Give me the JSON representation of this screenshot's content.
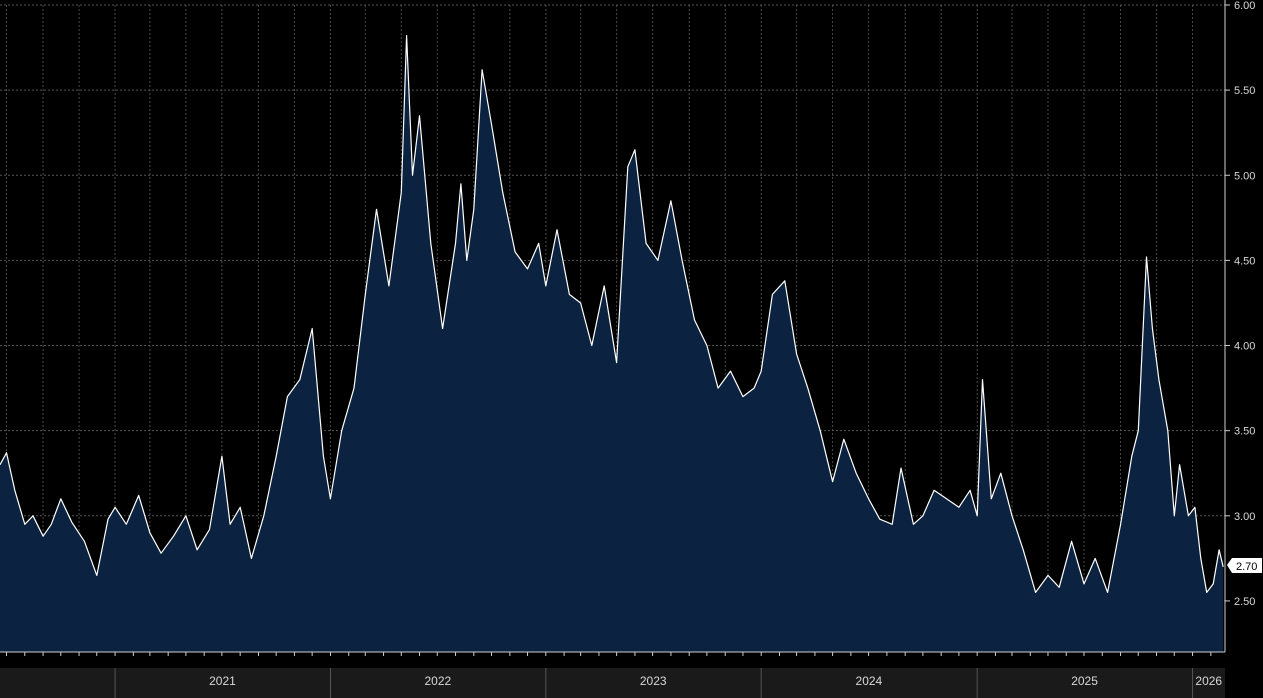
{
  "chart_data": {
    "type": "area",
    "title": "",
    "xlabel": "",
    "ylabel": "",
    "grid": true,
    "colors": {
      "background": "#000000",
      "fill": "#0b2340",
      "line": "#ffffff",
      "grid": "#555555",
      "axis_text": "#d8d8d8"
    },
    "ylim": [
      2.2,
      6.0
    ],
    "xlim": [
      "2020-06-20",
      "2026-02-25"
    ],
    "y_ticks": [
      "2.50",
      "3.00",
      "3.50",
      "4.00",
      "4.50",
      "5.00",
      "5.50",
      "6.00"
    ],
    "x_ticks": [
      "2021",
      "2022",
      "2023",
      "2024",
      "2025",
      "2026"
    ],
    "last_value_label": "2.70",
    "series": [
      {
        "values": [
          [
            "2020-06-20",
            3.3
          ],
          [
            "2020-07-01",
            3.37
          ],
          [
            "2020-07-15",
            3.15
          ],
          [
            "2020-08-01",
            2.95
          ],
          [
            "2020-08-15",
            3.0
          ],
          [
            "2020-09-01",
            2.88
          ],
          [
            "2020-09-15",
            2.95
          ],
          [
            "2020-10-01",
            3.1
          ],
          [
            "2020-10-20",
            2.96
          ],
          [
            "2020-11-10",
            2.85
          ],
          [
            "2020-12-01",
            2.65
          ],
          [
            "2020-12-20",
            2.98
          ],
          [
            "2021-01-01",
            3.05
          ],
          [
            "2021-01-20",
            2.95
          ],
          [
            "2021-02-10",
            3.12
          ],
          [
            "2021-03-01",
            2.9
          ],
          [
            "2021-03-20",
            2.78
          ],
          [
            "2021-04-10",
            2.88
          ],
          [
            "2021-05-01",
            3.0
          ],
          [
            "2021-05-20",
            2.8
          ],
          [
            "2021-06-10",
            2.92
          ],
          [
            "2021-07-01",
            3.35
          ],
          [
            "2021-07-15",
            2.95
          ],
          [
            "2021-08-01",
            3.05
          ],
          [
            "2021-08-20",
            2.75
          ],
          [
            "2021-09-10",
            3.0
          ],
          [
            "2021-10-01",
            3.35
          ],
          [
            "2021-10-20",
            3.7
          ],
          [
            "2021-11-10",
            3.8
          ],
          [
            "2021-12-01",
            4.1
          ],
          [
            "2021-12-20",
            3.35
          ],
          [
            "2022-01-01",
            3.1
          ],
          [
            "2022-01-20",
            3.5
          ],
          [
            "2022-02-10",
            3.75
          ],
          [
            "2022-03-01",
            4.3
          ],
          [
            "2022-03-20",
            4.8
          ],
          [
            "2022-04-10",
            4.35
          ],
          [
            "2022-05-01",
            4.9
          ],
          [
            "2022-05-10",
            5.82
          ],
          [
            "2022-05-20",
            5.0
          ],
          [
            "2022-06-01",
            5.35
          ],
          [
            "2022-06-20",
            4.6
          ],
          [
            "2022-07-10",
            4.1
          ],
          [
            "2022-08-01",
            4.6
          ],
          [
            "2022-08-10",
            4.95
          ],
          [
            "2022-08-20",
            4.5
          ],
          [
            "2022-09-01",
            4.8
          ],
          [
            "2022-09-15",
            5.62
          ],
          [
            "2022-10-01",
            5.3
          ],
          [
            "2022-10-20",
            4.9
          ],
          [
            "2022-11-10",
            4.55
          ],
          [
            "2022-12-01",
            4.45
          ],
          [
            "2022-12-20",
            4.6
          ],
          [
            "2023-01-01",
            4.35
          ],
          [
            "2023-01-20",
            4.68
          ],
          [
            "2023-02-10",
            4.3
          ],
          [
            "2023-03-01",
            4.25
          ],
          [
            "2023-03-20",
            4.0
          ],
          [
            "2023-04-10",
            4.35
          ],
          [
            "2023-05-01",
            3.9
          ],
          [
            "2023-05-20",
            5.05
          ],
          [
            "2023-06-01",
            5.15
          ],
          [
            "2023-06-20",
            4.6
          ],
          [
            "2023-07-10",
            4.5
          ],
          [
            "2023-08-01",
            4.85
          ],
          [
            "2023-08-20",
            4.5
          ],
          [
            "2023-09-10",
            4.15
          ],
          [
            "2023-10-01",
            4.0
          ],
          [
            "2023-10-20",
            3.75
          ],
          [
            "2023-11-10",
            3.85
          ],
          [
            "2023-12-01",
            3.7
          ],
          [
            "2023-12-20",
            3.75
          ],
          [
            "2024-01-01",
            3.85
          ],
          [
            "2024-01-20",
            4.3
          ],
          [
            "2024-02-10",
            4.38
          ],
          [
            "2024-03-01",
            3.95
          ],
          [
            "2024-03-20",
            3.75
          ],
          [
            "2024-04-10",
            3.5
          ],
          [
            "2024-05-01",
            3.2
          ],
          [
            "2024-05-20",
            3.45
          ],
          [
            "2024-06-10",
            3.25
          ],
          [
            "2024-07-01",
            3.1
          ],
          [
            "2024-07-20",
            2.98
          ],
          [
            "2024-08-10",
            2.95
          ],
          [
            "2024-08-25",
            3.28
          ],
          [
            "2024-09-15",
            2.95
          ],
          [
            "2024-10-01",
            3.0
          ],
          [
            "2024-10-20",
            3.15
          ],
          [
            "2024-11-10",
            3.1
          ],
          [
            "2024-12-01",
            3.05
          ],
          [
            "2024-12-20",
            3.15
          ],
          [
            "2025-01-01",
            3.0
          ],
          [
            "2025-01-10",
            3.8
          ],
          [
            "2025-01-25",
            3.1
          ],
          [
            "2025-02-10",
            3.25
          ],
          [
            "2025-03-01",
            3.0
          ],
          [
            "2025-03-20",
            2.8
          ],
          [
            "2025-04-10",
            2.55
          ],
          [
            "2025-05-01",
            2.65
          ],
          [
            "2025-05-20",
            2.58
          ],
          [
            "2025-06-10",
            2.85
          ],
          [
            "2025-07-01",
            2.6
          ],
          [
            "2025-07-20",
            2.75
          ],
          [
            "2025-08-10",
            2.55
          ],
          [
            "2025-09-01",
            2.95
          ],
          [
            "2025-09-20",
            3.35
          ],
          [
            "2025-10-01",
            3.5
          ],
          [
            "2025-10-15",
            4.52
          ],
          [
            "2025-10-25",
            4.1
          ],
          [
            "2025-11-05",
            3.8
          ],
          [
            "2025-11-20",
            3.5
          ],
          [
            "2025-12-01",
            3.0
          ],
          [
            "2025-12-10",
            3.3
          ],
          [
            "2025-12-25",
            3.0
          ],
          [
            "2026-01-05",
            3.05
          ],
          [
            "2026-01-15",
            2.75
          ],
          [
            "2026-01-25",
            2.55
          ],
          [
            "2026-02-05",
            2.6
          ],
          [
            "2026-02-15",
            2.8
          ],
          [
            "2026-02-22",
            2.7
          ]
        ]
      }
    ]
  }
}
